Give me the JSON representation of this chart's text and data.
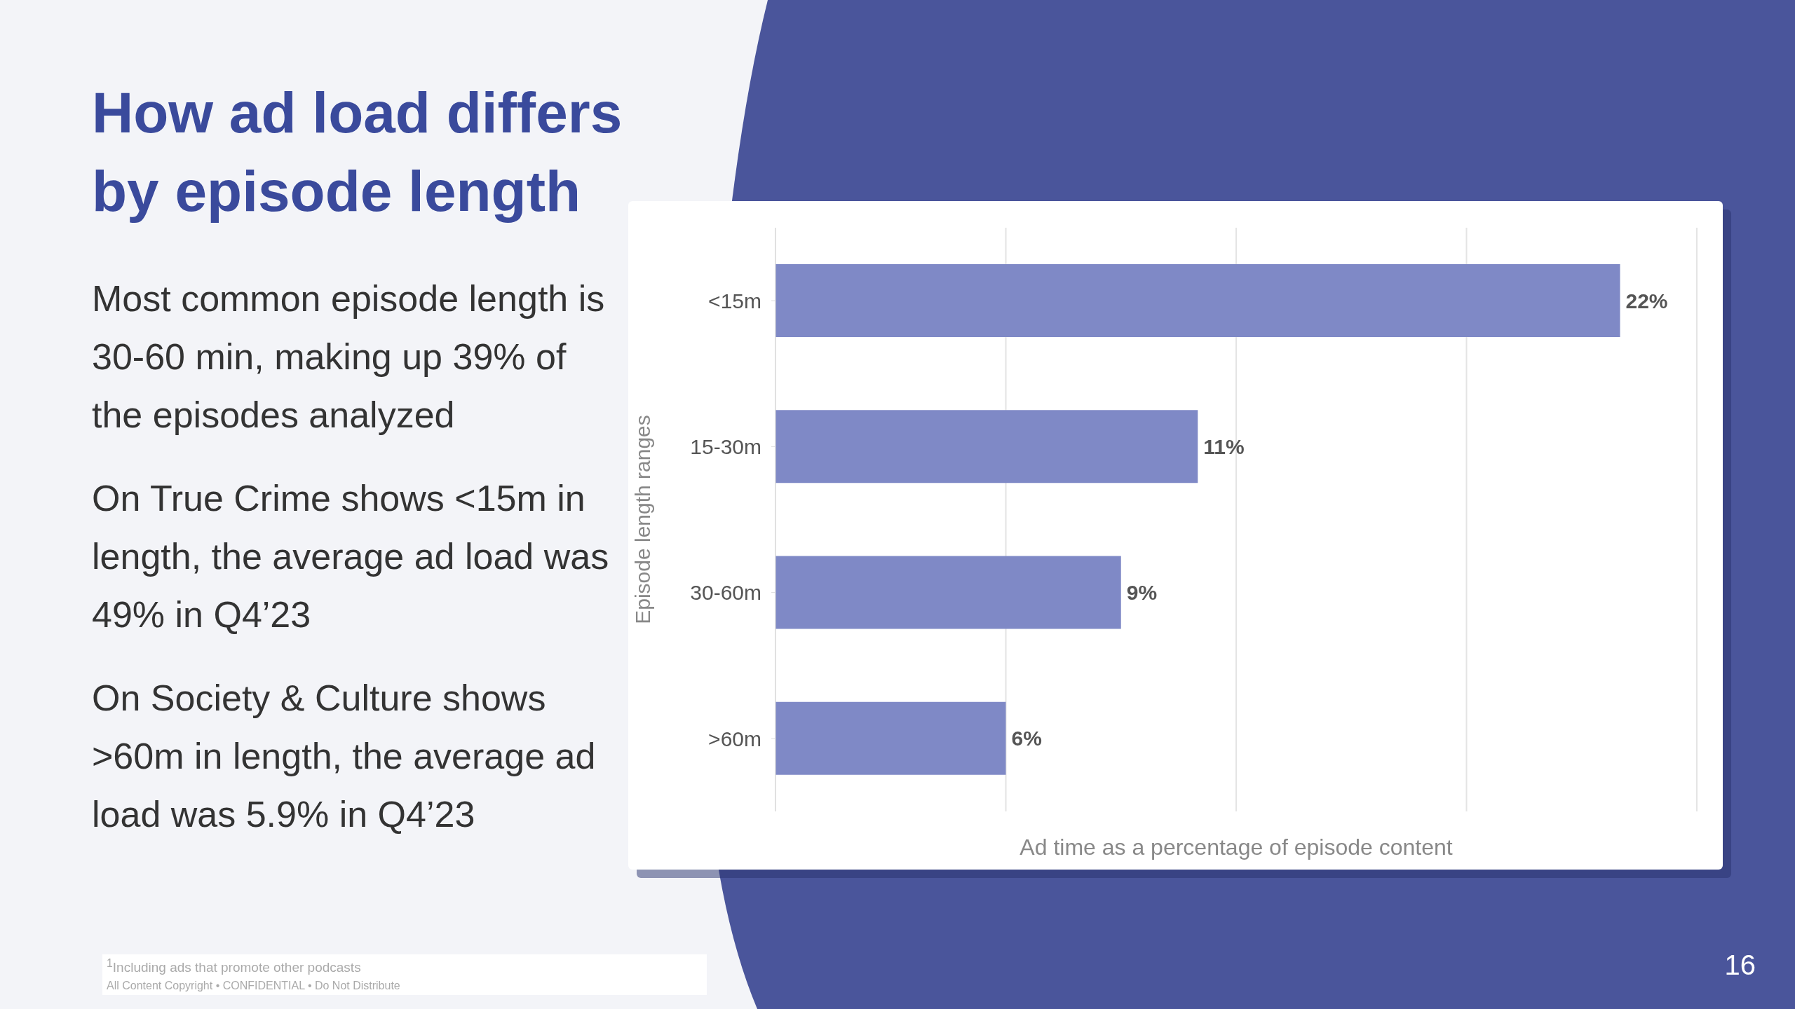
{
  "chart_data": {
    "type": "bar",
    "orientation": "horizontal",
    "title": "How ad load differs by episode length",
    "categories": [
      "<15m",
      "15-30m",
      "30-60m",
      ">60m"
    ],
    "values": [
      22,
      11,
      9,
      6
    ],
    "color": "#7f89c6",
    "value_labels": [
      "22%",
      "11%",
      "9%",
      "6%"
    ],
    "xlabel": "Ad time as a percentage of episode content",
    "ylabel": "Episode length ranges",
    "grid": "x",
    "tick_labels": "y",
    "annotations": [
      "Most common episode length is 30-60 min, making up 39% of the episodes analyzed",
      "On True Crime shows <15m in length, the average ad load was 49% in Q4’23",
      "On Society & Culture shows >60m in length, the average ad load was 5.9% in Q4’23",
      "$^{1}$Including ads that promote other podcasts",
      "All Content Copyright • CONFIDENTIAL • Do Not Distribute",
      "16"
    ]
  }
}
